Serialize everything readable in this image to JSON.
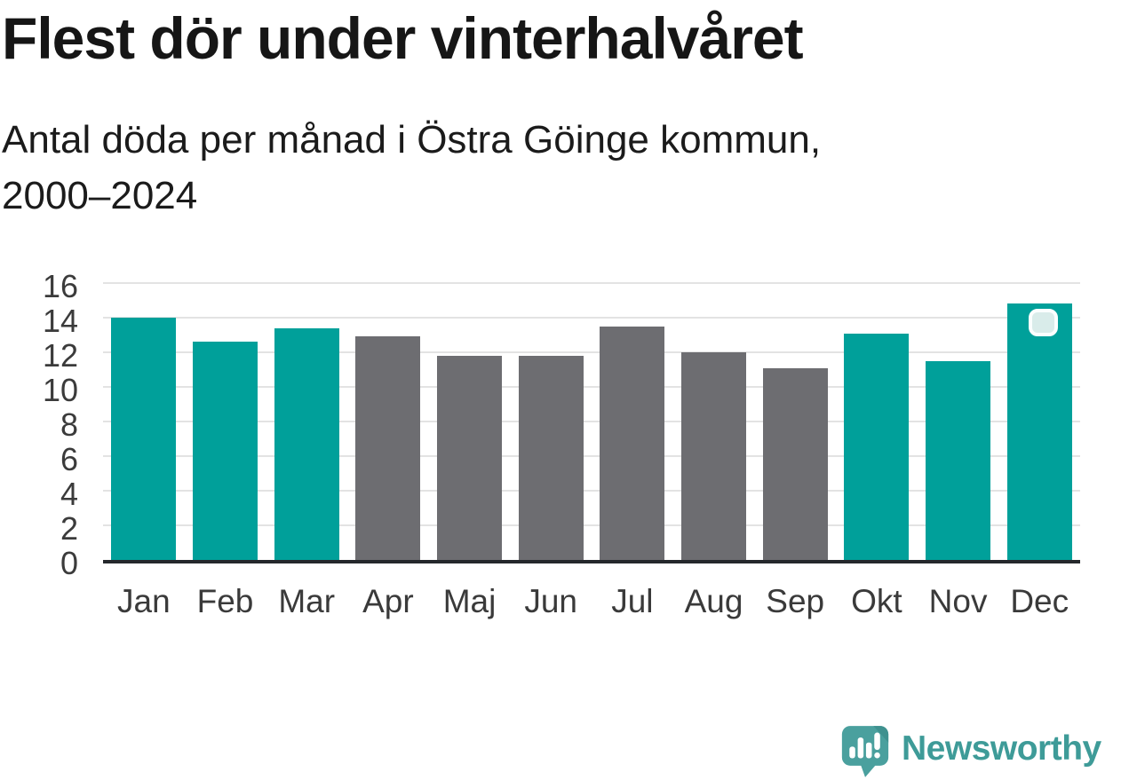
{
  "header": {
    "title": "Flest dör under vinterhalvåret"
  },
  "chart_data": {
    "type": "bar",
    "title": "Flest dör under vinterhalvåret",
    "subtitle": "Antal döda per månad i Östra Göinge kommun, 2000–2024",
    "subtitle_lines": [
      "Antal döda per månad i Östra Göinge kommun,",
      "2000–2024"
    ],
    "categories": [
      "Jan",
      "Feb",
      "Mar",
      "Apr",
      "Maj",
      "Jun",
      "Jul",
      "Aug",
      "Sep",
      "Okt",
      "Nov",
      "Dec"
    ],
    "values": [
      14.0,
      12.6,
      13.4,
      12.9,
      11.8,
      11.8,
      13.5,
      12.0,
      11.1,
      13.1,
      11.5,
      14.8
    ],
    "bar_colors": [
      "highlight",
      "highlight",
      "highlight",
      "muted",
      "muted",
      "muted",
      "muted",
      "muted",
      "muted",
      "highlight",
      "highlight",
      "highlight"
    ],
    "palette": {
      "highlight": "#00A09A",
      "muted": "#6D6D71"
    },
    "xlabel": "",
    "ylabel": "",
    "ylim": [
      0,
      16
    ],
    "yticks": [
      0,
      2,
      4,
      6,
      8,
      10,
      12,
      14,
      16
    ],
    "grid": true,
    "legend": "none",
    "gridline_color": "#e3e3e3",
    "axis_color": "#25282c",
    "marker_fill": "#d9ecea"
  },
  "footer": {
    "brand": "Newsworthy",
    "brand_color": "#3e9b98",
    "icon_color": "#4aa09e"
  }
}
